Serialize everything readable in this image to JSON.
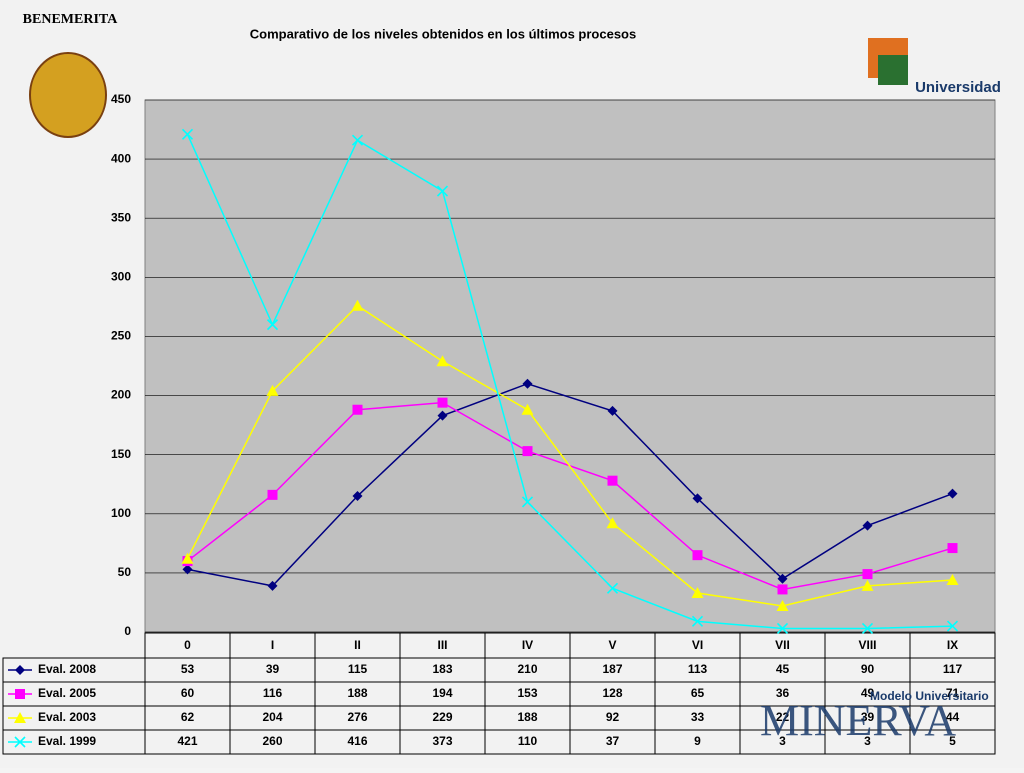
{
  "chart_data": {
    "type": "line",
    "title": "Comparativo de los niveles obtenidos en los últimos procesos",
    "categories": [
      "0",
      "I",
      "II",
      "III",
      "IV",
      "V",
      "VI",
      "VII",
      "VIII",
      "IX"
    ],
    "series": [
      {
        "name": "Eval. 2008",
        "color": "#000080",
        "marker": "diamond",
        "values": [
          53,
          39,
          115,
          183,
          210,
          187,
          113,
          45,
          90,
          117
        ]
      },
      {
        "name": "Eval. 2005",
        "color": "#ff00ff",
        "marker": "square",
        "values": [
          60,
          116,
          188,
          194,
          153,
          128,
          65,
          36,
          49,
          71
        ]
      },
      {
        "name": "Eval. 2003",
        "color": "#ffff00",
        "marker": "triangle",
        "values": [
          62,
          204,
          276,
          229,
          188,
          92,
          33,
          22,
          39,
          44
        ]
      },
      {
        "name": "Eval. 1999",
        "color": "#00ffff",
        "marker": "x",
        "values": [
          421,
          260,
          416,
          373,
          110,
          37,
          9,
          3,
          3,
          5
        ]
      }
    ],
    "ylim": [
      0,
      450
    ],
    "yticks": [
      0,
      50,
      100,
      150,
      200,
      250,
      300,
      350,
      400,
      450
    ],
    "grid": true
  },
  "branding": {
    "left": "BENEMERITA",
    "right": "Universidad",
    "bottom_small": "Modelo Universitario",
    "bottom": "MINERVA"
  }
}
